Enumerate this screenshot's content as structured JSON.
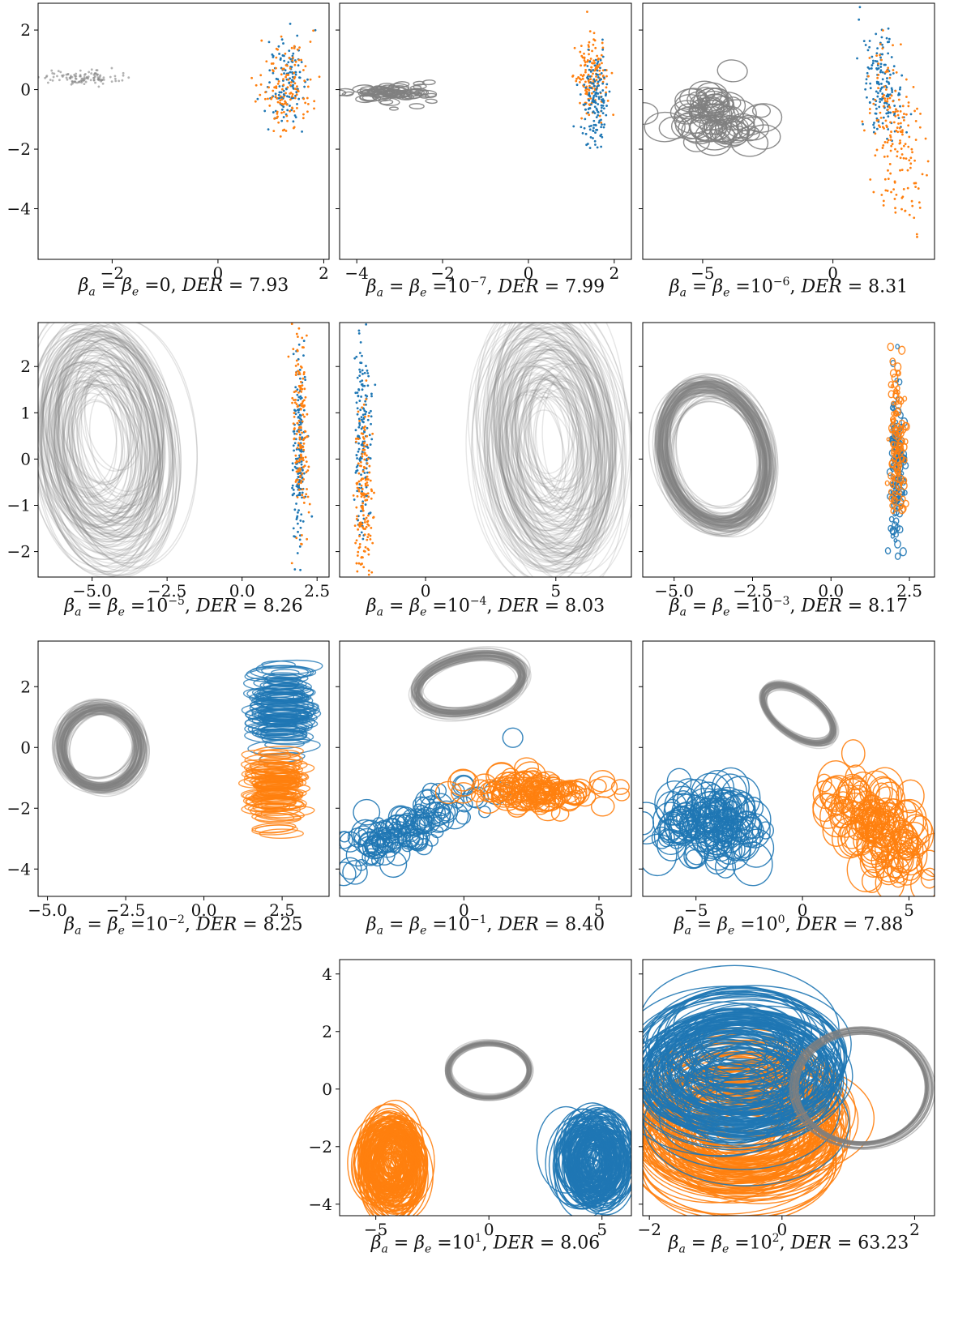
{
  "colors": {
    "gray": "#808080",
    "blue": "#1f77b4",
    "orange": "#ff7f0e"
  },
  "figure": {
    "layout": "4 rows x 3 columns grid of scatter / ellipse panels; row 4 column 1 empty"
  },
  "chart_data": [
    {
      "type": "scatter",
      "mark": "dots",
      "subscript_exp": "0",
      "der": "7.93",
      "xlim": [
        -3.4,
        2.1
      ],
      "ylim": [
        -5.7,
        2.9
      ],
      "xticks": [
        -2,
        0,
        2
      ],
      "yticks": [
        2,
        0,
        -2,
        -4
      ],
      "show_yticklabels": true,
      "series": [
        {
          "color": "gray",
          "cx": -2.6,
          "cy": 0.4,
          "sx": 0.35,
          "sy": 0.12,
          "n": 110,
          "w": 0,
          "h": 0
        },
        {
          "color": "blue",
          "cx": 1.3,
          "cy": 0.3,
          "sx": 0.2,
          "sy": 0.7,
          "n": 130,
          "w": 0,
          "h": 0
        },
        {
          "color": "orange",
          "cx": 1.3,
          "cy": 0.1,
          "sx": 0.25,
          "sy": 0.8,
          "n": 130,
          "w": 0,
          "h": 0
        }
      ]
    },
    {
      "type": "scatter",
      "mark": "dots",
      "subscript_exp": "10^-7",
      "der": "7.99",
      "xlim": [
        -4.4,
        2.4
      ],
      "ylim": [
        -5.7,
        2.9
      ],
      "xticks": [
        -4,
        -2,
        0,
        2
      ],
      "yticks": [
        2,
        0,
        -2,
        -4
      ],
      "show_yticklabels": false,
      "series": [
        {
          "color": "gray",
          "cx": -3.3,
          "cy": -0.15,
          "sx": 0.45,
          "sy": 0.15,
          "n": 70,
          "w": 0.35,
          "h": 0.18,
          "rot": 0
        },
        {
          "color": "orange",
          "cx": 1.45,
          "cy": 0.4,
          "sx": 0.18,
          "sy": 0.6,
          "n": 150,
          "w": 0,
          "h": 0
        },
        {
          "color": "blue",
          "cx": 1.55,
          "cy": -0.3,
          "sx": 0.15,
          "sy": 0.75,
          "n": 150,
          "w": 0,
          "h": 0
        }
      ]
    },
    {
      "type": "scatter",
      "mark": "dots",
      "subscript_exp": "10^-6",
      "der": "8.31",
      "xlim": [
        -7.3,
        3.9
      ],
      "ylim": [
        -5.7,
        2.9
      ],
      "xticks": [
        -5,
        0
      ],
      "yticks": [
        2,
        0,
        -2,
        -4
      ],
      "show_yticklabels": false,
      "series": [
        {
          "color": "gray",
          "cx": -4.5,
          "cy": -0.9,
          "sx": 0.8,
          "sy": 0.5,
          "n": 70,
          "w": 1.1,
          "h": 0.7,
          "rot": 0
        },
        {
          "color": "blue",
          "cx": 1.9,
          "cy": 0.2,
          "sx": 0.35,
          "sy": 0.8,
          "n": 160,
          "w": 0,
          "h": 0,
          "slope": -0.9
        },
        {
          "color": "orange",
          "cx": 2.4,
          "cy": -1.5,
          "sx": 0.5,
          "sy": 1.4,
          "n": 180,
          "w": 0,
          "h": 0,
          "slope": -1.2
        }
      ]
    },
    {
      "type": "scatter",
      "mark": "ellipses",
      "subscript_exp": "10^-5",
      "der": "8.26",
      "xlim": [
        -6.8,
        2.9
      ],
      "ylim": [
        -2.55,
        2.95
      ],
      "xticks": [
        -5.0,
        -2.5,
        0.0,
        2.5
      ],
      "xticklabels": [
        "-5.0",
        "-2.5",
        "0.0",
        "2.5"
      ],
      "yticks": [
        2,
        1,
        0,
        -1,
        -2
      ],
      "show_yticklabels": true,
      "series": [
        {
          "color": "gray",
          "cx": -4.6,
          "cy": 0.4,
          "sx": 0.35,
          "sy": 0.25,
          "n": 110,
          "w": 3.2,
          "h": 3.8,
          "rot": -8,
          "alpha": 0.22
        },
        {
          "color": "blue",
          "cx": 1.9,
          "cy": 0.0,
          "sx": 0.12,
          "sy": 1.1,
          "n": 160,
          "w": 0,
          "h": 0
        },
        {
          "color": "orange",
          "cx": 1.95,
          "cy": 0.6,
          "sx": 0.13,
          "sy": 1.0,
          "n": 160,
          "w": 0,
          "h": 0
        }
      ]
    },
    {
      "type": "scatter",
      "mark": "ellipses",
      "subscript_exp": "10^-4",
      "der": "8.03",
      "xlim": [
        -3.3,
        7.9
      ],
      "ylim": [
        -2.55,
        2.95
      ],
      "xticks": [
        0,
        5
      ],
      "yticks": [
        2,
        1,
        0,
        -1,
        -2
      ],
      "show_yticklabels": false,
      "series": [
        {
          "color": "gray",
          "cx": 4.8,
          "cy": 0.3,
          "sx": 0.4,
          "sy": 0.3,
          "n": 120,
          "w": 3.6,
          "h": 4.0,
          "rot": -5,
          "alpha": 0.2
        },
        {
          "color": "blue",
          "cx": -2.4,
          "cy": 0.5,
          "sx": 0.15,
          "sy": 1.1,
          "n": 160,
          "w": 0,
          "h": 0
        },
        {
          "color": "orange",
          "cx": -2.4,
          "cy": -0.7,
          "sx": 0.15,
          "sy": 0.9,
          "n": 160,
          "w": 0,
          "h": 0
        }
      ]
    },
    {
      "type": "scatter",
      "mark": "ellipses",
      "subscript_exp": "10^-3",
      "der": "8.17",
      "xlim": [
        -6.0,
        3.3
      ],
      "ylim": [
        -2.55,
        2.95
      ],
      "xticks": [
        -5.0,
        -2.5,
        0.0,
        2.5
      ],
      "xticklabels": [
        "-5.0",
        "-2.5",
        "0.0",
        "2.5"
      ],
      "yticks": [
        2,
        1,
        0,
        -1,
        -2
      ],
      "show_yticklabels": false,
      "series": [
        {
          "color": "gray",
          "cx": -3.7,
          "cy": 0.1,
          "sx": 0.15,
          "sy": 0.12,
          "n": 110,
          "w": 3.2,
          "h": 3.0,
          "rot": -15,
          "alpha": 0.28,
          "ring": true
        },
        {
          "color": "blue",
          "cx": 2.1,
          "cy": -0.2,
          "sx": 0.12,
          "sy": 0.85,
          "n": 130,
          "w": 0.14,
          "h": 0.12
        },
        {
          "color": "orange",
          "cx": 2.1,
          "cy": 0.3,
          "sx": 0.14,
          "sy": 0.8,
          "n": 110,
          "w": 0.14,
          "h": 0.12
        }
      ]
    },
    {
      "type": "scatter",
      "mark": "ellipses",
      "subscript_exp": "10^-2",
      "der": "8.25",
      "xlim": [
        -5.3,
        4.0
      ],
      "ylim": [
        -4.9,
        3.5
      ],
      "xticks": [
        -5.0,
        -2.5,
        0.0,
        2.5
      ],
      "xticklabels": [
        "-5.0",
        "-2.5",
        "0.0",
        "2.5"
      ],
      "yticks": [
        2,
        0,
        -2,
        -4
      ],
      "show_yticklabels": true,
      "series": [
        {
          "color": "gray",
          "cx": -3.3,
          "cy": 0.0,
          "sx": 0.12,
          "sy": 0.12,
          "n": 90,
          "w": 2.5,
          "h": 2.6,
          "rot": -15,
          "alpha": 0.3,
          "ring": true
        },
        {
          "color": "blue",
          "cx": 2.5,
          "cy": 1.3,
          "sx": 0.12,
          "sy": 0.7,
          "n": 90,
          "w": 1.6,
          "h": 0.35,
          "alpha": 0.8
        },
        {
          "color": "orange",
          "cx": 2.3,
          "cy": -1.3,
          "sx": 0.12,
          "sy": 0.5,
          "n": 90,
          "w": 1.4,
          "h": 0.3,
          "alpha": 0.8
        }
      ]
    },
    {
      "type": "scatter",
      "mark": "ellipses",
      "subscript_exp": "10^-1",
      "der": "8.40",
      "xlim": [
        -4.6,
        6.2
      ],
      "ylim": [
        -4.9,
        3.5
      ],
      "xticks": [
        0,
        5
      ],
      "yticks": [
        2,
        0,
        -2,
        -4
      ],
      "show_yticklabels": false,
      "series": [
        {
          "color": "gray",
          "cx": 0.2,
          "cy": 2.1,
          "sx": 0.08,
          "sy": 0.08,
          "n": 70,
          "w": 4.0,
          "h": 1.8,
          "rot": -12,
          "alpha": 0.3,
          "ring": true
        },
        {
          "color": "blue",
          "cx": -2.0,
          "cy": -2.6,
          "sx": 1.2,
          "sy": 0.4,
          "n": 120,
          "w": 0.7,
          "h": 0.6,
          "slope": 0.45
        },
        {
          "color": "orange",
          "cx": 2.8,
          "cy": -1.4,
          "sx": 1.3,
          "sy": 0.25,
          "n": 120,
          "w": 0.8,
          "h": 0.6
        }
      ]
    },
    {
      "type": "scatter",
      "mark": "ellipses",
      "subscript_exp": "10^0",
      "der": "7.88",
      "xlim": [
        -7.5,
        6.2
      ],
      "ylim": [
        -4.9,
        3.5
      ],
      "xticks": [
        -5,
        0,
        5
      ],
      "yticks": [
        2,
        0,
        -2,
        -4
      ],
      "show_yticklabels": false,
      "series": [
        {
          "color": "gray",
          "cx": -0.2,
          "cy": 1.1,
          "sx": 0.06,
          "sy": 0.06,
          "n": 60,
          "w": 3.8,
          "h": 1.4,
          "rot": 35,
          "alpha": 0.3,
          "ring": true
        },
        {
          "color": "blue",
          "cx": -4.4,
          "cy": -2.6,
          "sx": 1.2,
          "sy": 0.6,
          "n": 130,
          "w": 1.3,
          "h": 1.0
        },
        {
          "color": "orange",
          "cx": 3.5,
          "cy": -2.6,
          "sx": 1.1,
          "sy": 0.7,
          "n": 130,
          "w": 1.2,
          "h": 1.0,
          "slope": -0.5
        }
      ]
    },
    {
      "type": "scatter",
      "mark": "ellipses",
      "subscript_exp": "10^1",
      "der": "8.06",
      "xlim": [
        -6.6,
        6.3
      ],
      "ylim": [
        -4.4,
        4.5
      ],
      "xticks": [
        -5,
        0,
        5
      ],
      "yticks": [
        4,
        2,
        0,
        -2,
        -4
      ],
      "show_yticklabels": true,
      "series": [
        {
          "color": "gray",
          "cx": 0.0,
          "cy": 0.65,
          "sx": 0.03,
          "sy": 0.03,
          "n": 40,
          "w": 3.6,
          "h": 1.9,
          "rot": 0,
          "alpha": 0.35,
          "ring": true
        },
        {
          "color": "orange",
          "cx": -4.3,
          "cy": -2.6,
          "sx": 0.35,
          "sy": 0.35,
          "n": 130,
          "w": 1.9,
          "h": 2.2,
          "alpha": 0.9
        },
        {
          "color": "blue",
          "cx": 4.7,
          "cy": -2.5,
          "sx": 0.4,
          "sy": 0.3,
          "n": 130,
          "w": 1.9,
          "h": 2.2,
          "alpha": 0.9
        }
      ]
    },
    {
      "type": "scatter",
      "mark": "ellipses",
      "subscript_exp": "10^2",
      "der": "63.23",
      "xlim": [
        -2.1,
        2.3
      ],
      "ylim": [
        -4.4,
        4.5
      ],
      "xticks": [
        -2,
        0,
        2
      ],
      "yticks": [
        4,
        2,
        0,
        -2,
        -4
      ],
      "show_yticklabels": false,
      "series": [
        {
          "color": "orange",
          "cx": -0.6,
          "cy": -1.3,
          "sx": 0.15,
          "sy": 0.6,
          "n": 120,
          "w": 2.2,
          "h": 3.0,
          "alpha": 0.9
        },
        {
          "color": "blue",
          "cx": -0.65,
          "cy": 0.7,
          "sx": 0.15,
          "sy": 0.65,
          "n": 120,
          "w": 2.3,
          "h": 3.2,
          "alpha": 0.9
        },
        {
          "color": "gray",
          "cx": 1.2,
          "cy": 0.05,
          "sx": 0.01,
          "sy": 0.02,
          "n": 25,
          "w": 2.05,
          "h": 4.0,
          "rot": 0,
          "alpha": 0.5,
          "ring": true
        }
      ]
    }
  ],
  "captions": [
    {
      "sup": "",
      "val": "=0, ",
      "der": "7.93"
    },
    {
      "sup": "−7",
      "val": "",
      "der": "7.99"
    },
    {
      "sup": "−6",
      "val": "",
      "der": "8.31"
    },
    {
      "sup": "−5",
      "val": "",
      "der": "8.26"
    },
    {
      "sup": "−4",
      "val": "",
      "der": "8.03"
    },
    {
      "sup": "−3",
      "val": "",
      "der": "8.17"
    },
    {
      "sup": "−2",
      "val": "",
      "der": "8.25"
    },
    {
      "sup": "−1",
      "val": "",
      "der": "8.40"
    },
    {
      "sup": "0",
      "val": "",
      "der": "7.88"
    },
    {
      "sup": "1",
      "val": "",
      "der": "8.06"
    },
    {
      "sup": "2",
      "val": "",
      "der": "63.23"
    }
  ]
}
